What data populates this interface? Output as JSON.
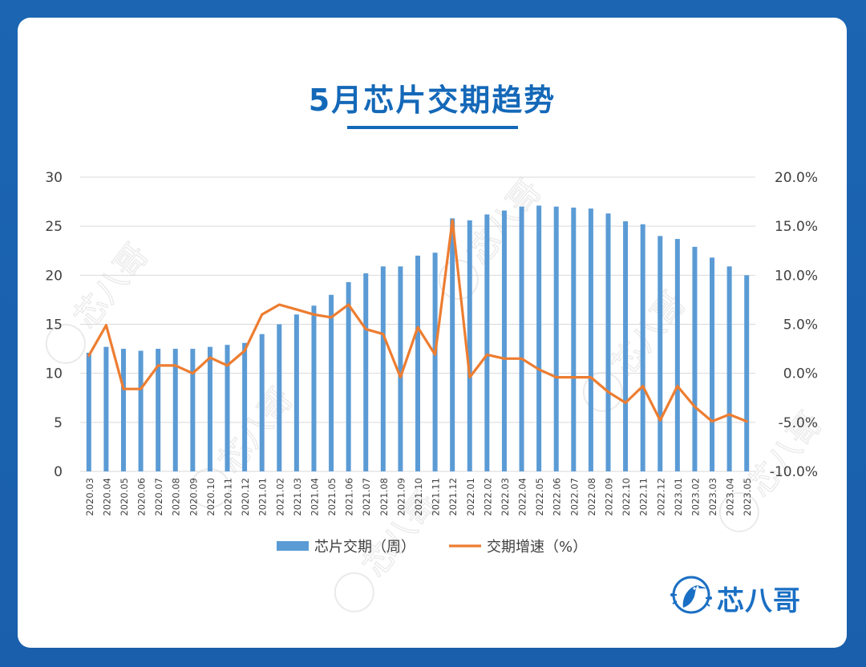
{
  "page": {
    "title": "5月芯片交期趋势",
    "brand_name": "芯八哥",
    "watermark_text": "芯八哥"
  },
  "colors": {
    "background": "#1a62ae",
    "title": "#1468b8",
    "bar": "#5b9bd5",
    "line": "#ed7d31",
    "grid": "#d9d9d9",
    "axis_text": "#404040"
  },
  "chart_data": {
    "type": "bar+line",
    "categories": [
      "2020.03",
      "2020.04",
      "2020.05",
      "2020.06",
      "2020.07",
      "2020.08",
      "2020.09",
      "2020.10",
      "2020.11",
      "2020.12",
      "2021.01",
      "2021.02",
      "2021.03",
      "2021.04",
      "2021.05",
      "2021.06",
      "2021.07",
      "2021.08",
      "2021.09",
      "2021.10",
      "2021.11",
      "2021.12",
      "2022.01",
      "2022.02",
      "2022.03",
      "2022.04",
      "2022.05",
      "2022.06",
      "2022.07",
      "2022.08",
      "2022.09",
      "2022.10",
      "2022.11",
      "2022.12",
      "2023.01",
      "2023.02",
      "2023.03",
      "2023.04",
      "2023.05"
    ],
    "series": [
      {
        "name": "芯片交期（周）",
        "type": "bar",
        "axis": "left",
        "values": [
          12.1,
          12.7,
          12.5,
          12.3,
          12.5,
          12.5,
          12.5,
          12.7,
          12.9,
          13.1,
          14.0,
          15.0,
          16.0,
          16.9,
          18.0,
          19.3,
          20.2,
          20.9,
          20.9,
          22.0,
          22.3,
          25.8,
          25.6,
          26.2,
          26.6,
          27.0,
          27.1,
          27.0,
          26.9,
          26.8,
          26.3,
          25.5,
          25.2,
          24.0,
          23.7,
          22.9,
          21.8,
          20.9,
          20.0
        ]
      },
      {
        "name": "交期增速（%）",
        "type": "line",
        "axis": "right",
        "values": [
          1.8,
          4.9,
          -1.6,
          -1.6,
          0.8,
          0.8,
          0.0,
          1.6,
          0.8,
          2.3,
          6.0,
          7.0,
          6.5,
          6.0,
          5.7,
          7.0,
          4.5,
          4.0,
          -0.4,
          4.7,
          1.9,
          15.6,
          -0.4,
          1.9,
          1.5,
          1.5,
          0.4,
          -0.4,
          -0.4,
          -0.4,
          -1.9,
          -3.0,
          -1.3,
          -4.8,
          -1.3,
          -3.4,
          -4.9,
          -4.2,
          -4.9
        ]
      }
    ],
    "y_left": {
      "min": 0,
      "max": 30,
      "ticks": [
        "0",
        "5",
        "10",
        "15",
        "20",
        "25",
        "30"
      ]
    },
    "y_right": {
      "min": -10,
      "max": 20,
      "ticks": [
        "-10.0%",
        "-5.0%",
        "0.0%",
        "5.0%",
        "10.0%",
        "15.0%",
        "20.0%"
      ]
    },
    "grid": true,
    "legend_position": "bottom"
  }
}
